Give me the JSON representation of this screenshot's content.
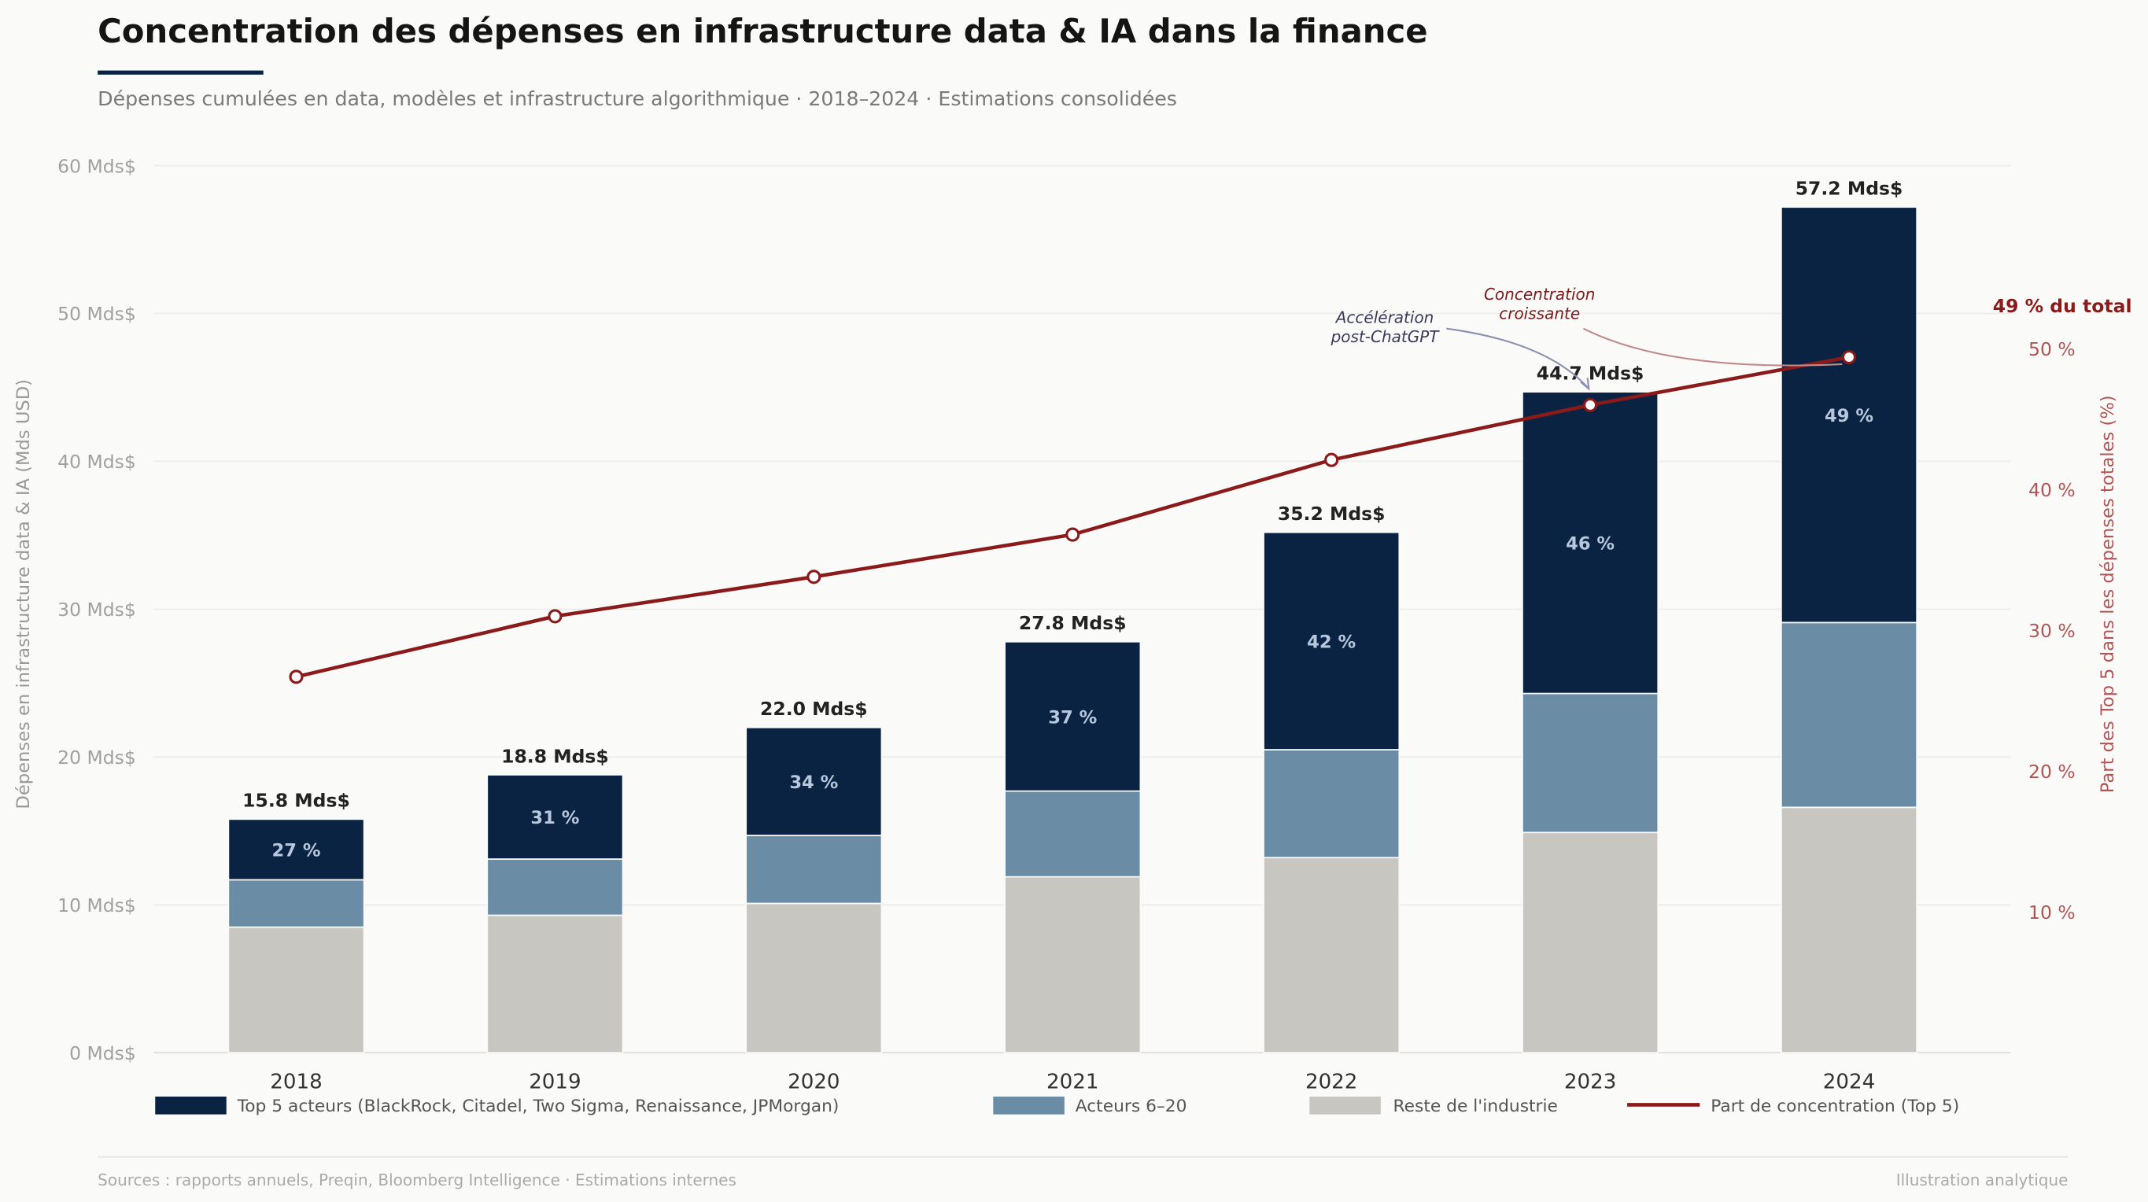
{
  "header": {
    "title": "Concentration des dépenses en infrastructure data & IA dans la finance",
    "subtitle": "Dépenses cumulées en data, modèles et infrastructure algorithmique · 2018–2024 · Estimations consolidées"
  },
  "footer": {
    "sources": "Sources : rapports annuels, Preqin, Bloomberg Intelligence · Estimations internes",
    "note": "Illustration analytique"
  },
  "colors": {
    "top5": "#0b2343",
    "actors": "#6a8ca5",
    "rest": "#c8c6c1",
    "line": "#8b1a1a",
    "accent": "#0b2343"
  },
  "chart_data": {
    "type": "bar",
    "stacked": true,
    "categories": [
      "2018",
      "2019",
      "2020",
      "2021",
      "2022",
      "2023",
      "2024"
    ],
    "series": [
      {
        "name": "Reste de l'industrie",
        "values": [
          8.5,
          9.3,
          10.1,
          11.9,
          13.2,
          14.9,
          16.6
        ]
      },
      {
        "name": "Acteurs 6–20",
        "values": [
          3.2,
          3.8,
          4.6,
          5.8,
          7.3,
          9.4,
          12.5
        ]
      },
      {
        "name": "Top 5 acteurs (BlackRock, Citadel, Two Sigma, Renaissance, JPMorgan)",
        "values": [
          4.1,
          5.7,
          7.3,
          10.1,
          14.7,
          20.4,
          28.1
        ]
      }
    ],
    "totals": [
      15.8,
      18.8,
      22.0,
      27.8,
      35.2,
      44.7,
      57.2
    ],
    "total_labels": [
      "15.8 Mds$",
      "18.8 Mds$",
      "22.0 Mds$",
      "27.8 Mds$",
      "35.2 Mds$",
      "44.7 Mds$",
      "57.2 Mds$"
    ],
    "share_labels": [
      "27 %",
      "31 %",
      "34 %",
      "37 %",
      "42 %",
      "46 %",
      "49 %"
    ],
    "line_series": {
      "name": "Part de concentration (Top 5)",
      "axis": "right",
      "values": [
        26.7,
        31.0,
        33.8,
        36.8,
        42.1,
        46.0,
        49.4
      ]
    },
    "ylabel": "Dépenses en infrastructure data & IA (Mds USD)",
    "ylabel_right": "Part des Top 5 dans les dépenses totales (%)",
    "ylim": [
      0,
      60
    ],
    "ylim_right": [
      0,
      63
    ],
    "yticks": [
      {
        "value": 0,
        "label": "0 Mds$"
      },
      {
        "value": 10,
        "label": "10 Mds$"
      },
      {
        "value": 20,
        "label": "20 Mds$"
      },
      {
        "value": 30,
        "label": "30 Mds$"
      },
      {
        "value": 40,
        "label": "40 Mds$"
      },
      {
        "value": 50,
        "label": "50 Mds$"
      },
      {
        "value": 60,
        "label": "60 Mds$"
      }
    ],
    "yticks_right": [
      {
        "value": 10,
        "label": "10 %"
      },
      {
        "value": 20,
        "label": "20 %"
      },
      {
        "value": 30,
        "label": "30 %"
      },
      {
        "value": 40,
        "label": "40 %"
      },
      {
        "value": 50,
        "label": "50 %"
      }
    ],
    "grid": true,
    "legend_position": "bottom",
    "legend": [
      {
        "label": "Top 5 acteurs (BlackRock, Citadel, Two Sigma, Renaissance, JPMorgan)",
        "kind": "box",
        "color": "#0b2343"
      },
      {
        "label": "Acteurs 6–20",
        "kind": "box",
        "color": "#6a8ca5"
      },
      {
        "label": "Reste de l'industrie",
        "kind": "box",
        "color": "#c8c6c1"
      },
      {
        "label": "Part de concentration (Top 5)",
        "kind": "line",
        "color": "#8b1a1a"
      }
    ],
    "annotations": [
      {
        "lines": [
          "Accélération",
          "post-ChatGPT"
        ],
        "target": "2023",
        "color": "#3a3a5a"
      },
      {
        "lines": [
          "Concentration",
          "croissante"
        ],
        "target": "2024",
        "color": "#7a1a1a"
      },
      {
        "text": "49 % du total",
        "target": "2024"
      }
    ]
  }
}
